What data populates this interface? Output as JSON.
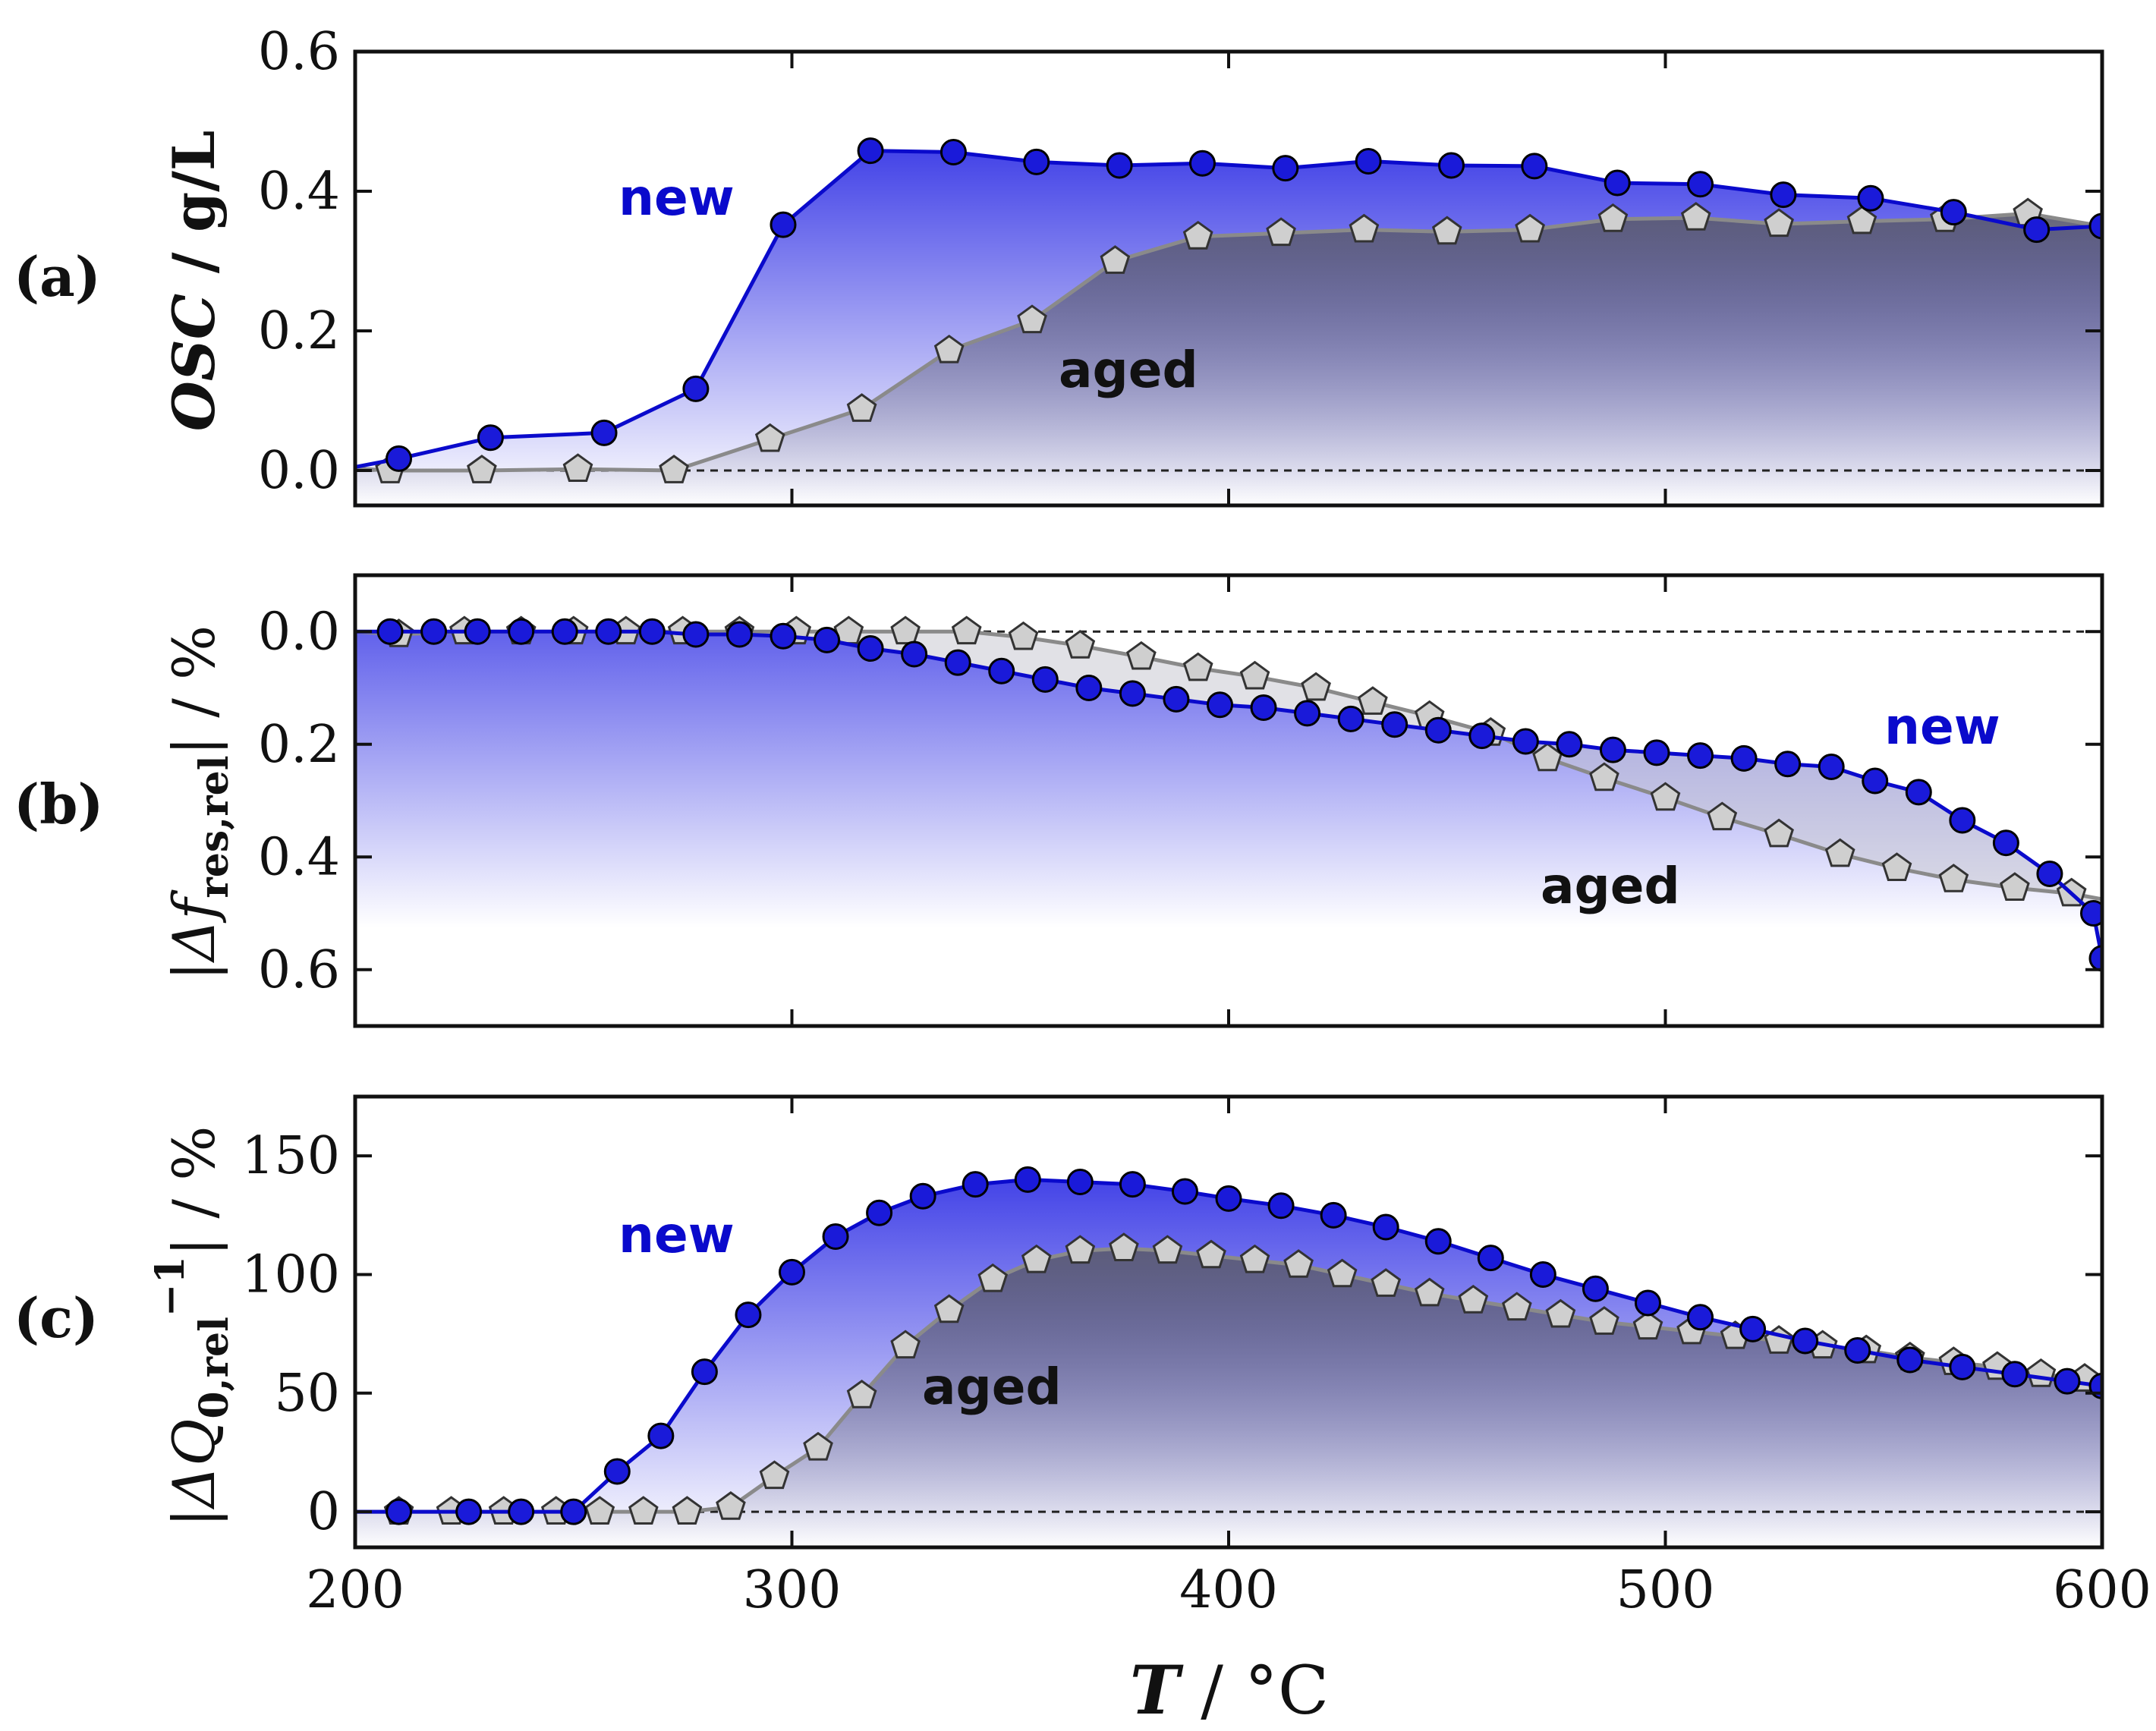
{
  "colors": {
    "new": "#0a0acc",
    "new_fill": "#3a3ae6",
    "aged": "#8a8a8a",
    "aged_fill": "#6e6e86",
    "marker_aged": "#cfcfcf"
  },
  "chart_data": [
    {
      "type": "line",
      "panel": "(a)",
      "ylabel_main": "OSC",
      "ylabel_unit": " / g/L",
      "xlim": [
        200,
        600
      ],
      "ylim": [
        -0.05,
        0.6
      ],
      "yticks": [
        "0.0",
        "0.2",
        "0.4",
        "0.6"
      ],
      "ytick_values": [
        0.0,
        0.2,
        0.4,
        0.6
      ],
      "inverted": false,
      "labels": {
        "new": "new",
        "aged": "aged"
      },
      "series": [
        {
          "name": "new",
          "x": [
            200,
            210,
            231,
            257,
            278,
            298,
            318,
            337,
            356,
            375,
            394,
            413,
            432,
            451,
            470,
            489,
            508,
            527,
            547,
            566,
            585,
            600
          ],
          "y": [
            0.005,
            0.017,
            0.047,
            0.054,
            0.117,
            0.352,
            0.458,
            0.456,
            0.442,
            0.437,
            0.44,
            0.433,
            0.443,
            0.437,
            0.436,
            0.412,
            0.41,
            0.395,
            0.39,
            0.37,
            0.345,
            0.35
          ]
        },
        {
          "name": "aged",
          "x": [
            200,
            208,
            229,
            251,
            273,
            295,
            316,
            336,
            355,
            374,
            393,
            412,
            431,
            450,
            469,
            488,
            507,
            526,
            545,
            564,
            583,
            600
          ],
          "y": [
            0.003,
            0.0,
            0.0,
            0.002,
            0.0,
            0.045,
            0.088,
            0.172,
            0.215,
            0.3,
            0.335,
            0.34,
            0.345,
            0.342,
            0.345,
            0.36,
            0.362,
            0.353,
            0.357,
            0.36,
            0.368,
            0.35
          ]
        }
      ]
    },
    {
      "type": "line",
      "panel": "(b)",
      "ylabel_main": "|Δf",
      "ylabel_sub": "res,rel",
      "ylabel_unit": "| / %",
      "xlim": [
        200,
        600
      ],
      "ylim": [
        -0.1,
        0.7
      ],
      "yticks": [
        "0.0",
        "0.2",
        "0.4",
        "0.6"
      ],
      "ytick_values": [
        0.0,
        0.2,
        0.4,
        0.6
      ],
      "inverted": true,
      "labels": {
        "new": "new",
        "aged": "aged"
      },
      "series": [
        {
          "name": "new",
          "x": [
            200,
            208,
            218,
            228,
            238,
            248,
            258,
            268,
            278,
            288,
            298,
            308,
            318,
            328,
            338,
            348,
            358,
            368,
            378,
            388,
            398,
            408,
            418,
            428,
            438,
            448,
            458,
            468,
            478,
            488,
            498,
            508,
            518,
            528,
            538,
            548,
            558,
            568,
            578,
            588,
            598,
            600
          ],
          "y": [
            0.0,
            0.0,
            0.0,
            0.0,
            0.0,
            0.0,
            0.0,
            0.0,
            0.005,
            0.005,
            0.008,
            0.015,
            0.03,
            0.04,
            0.055,
            0.07,
            0.085,
            0.1,
            0.11,
            0.12,
            0.13,
            0.135,
            0.145,
            0.155,
            0.165,
            0.175,
            0.185,
            0.195,
            0.2,
            0.21,
            0.215,
            0.22,
            0.225,
            0.235,
            0.24,
            0.265,
            0.285,
            0.335,
            0.375,
            0.43,
            0.5,
            0.58
          ]
        },
        {
          "name": "aged",
          "x": [
            200,
            210,
            225,
            238,
            250,
            262,
            275,
            288,
            301,
            313,
            326,
            340,
            353,
            366,
            380,
            393,
            406,
            420,
            433,
            446,
            460,
            473,
            486,
            500,
            513,
            526,
            540,
            553,
            566,
            580,
            593,
            600
          ],
          "y": [
            0.0,
            0.005,
            0.0,
            0.0,
            0.0,
            0.0,
            0.0,
            0.0,
            0.0,
            0.0,
            0.0,
            0.0,
            0.01,
            0.025,
            0.045,
            0.065,
            0.08,
            0.1,
            0.125,
            0.15,
            0.18,
            0.225,
            0.26,
            0.295,
            0.33,
            0.36,
            0.395,
            0.42,
            0.44,
            0.455,
            0.465,
            0.475
          ]
        }
      ]
    },
    {
      "type": "line",
      "panel": "(c)",
      "ylabel_main": "|ΔQ",
      "ylabel_sub": "0,rel",
      "ylabel_sup": "−1",
      "ylabel_unit": "| / %",
      "xlim": [
        200,
        600
      ],
      "ylim": [
        -15,
        175
      ],
      "yticks": [
        "0",
        "50",
        "100",
        "150"
      ],
      "ytick_values": [
        0,
        50,
        100,
        150
      ],
      "inverted": false,
      "labels": {
        "new": "new",
        "aged": "aged"
      },
      "series": [
        {
          "name": "new",
          "x": [
            200,
            210,
            226,
            238,
            250,
            260,
            270,
            280,
            290,
            300,
            310,
            320,
            330,
            342,
            354,
            366,
            378,
            390,
            400,
            412,
            424,
            436,
            448,
            460,
            472,
            484,
            496,
            508,
            520,
            532,
            544,
            556,
            568,
            580,
            592,
            600
          ],
          "y": [
            0,
            0,
            0,
            0,
            0,
            17,
            32,
            59,
            83,
            101,
            116,
            126,
            133,
            138,
            140,
            139,
            138,
            135,
            132,
            129,
            125,
            120,
            114,
            107,
            100,
            94,
            88,
            82,
            77,
            72,
            68,
            64,
            61,
            58,
            55,
            53
          ]
        },
        {
          "name": "aged",
          "x": [
            200,
            210,
            222,
            234,
            246,
            256,
            266,
            276,
            286,
            296,
            306,
            316,
            326,
            336,
            346,
            356,
            366,
            376,
            386,
            396,
            406,
            416,
            426,
            436,
            446,
            456,
            466,
            476,
            486,
            496,
            506,
            516,
            526,
            536,
            546,
            556,
            566,
            576,
            586,
            596,
            600
          ],
          "y": [
            0,
            0,
            0,
            0,
            0,
            0,
            0,
            0,
            2,
            15,
            27,
            49,
            70,
            85,
            98,
            106,
            110,
            111,
            110,
            108,
            106,
            104,
            100,
            96,
            92,
            89,
            86,
            83,
            80,
            78,
            76,
            74,
            72,
            70,
            68,
            65,
            63,
            61,
            58,
            56,
            55
          ]
        }
      ]
    }
  ],
  "xaxis": {
    "ticks": [
      "200",
      "300",
      "400",
      "500",
      "600"
    ],
    "tick_values": [
      200,
      300,
      400,
      500,
      600
    ],
    "label_main": "T",
    "label_unit": " / °C"
  }
}
